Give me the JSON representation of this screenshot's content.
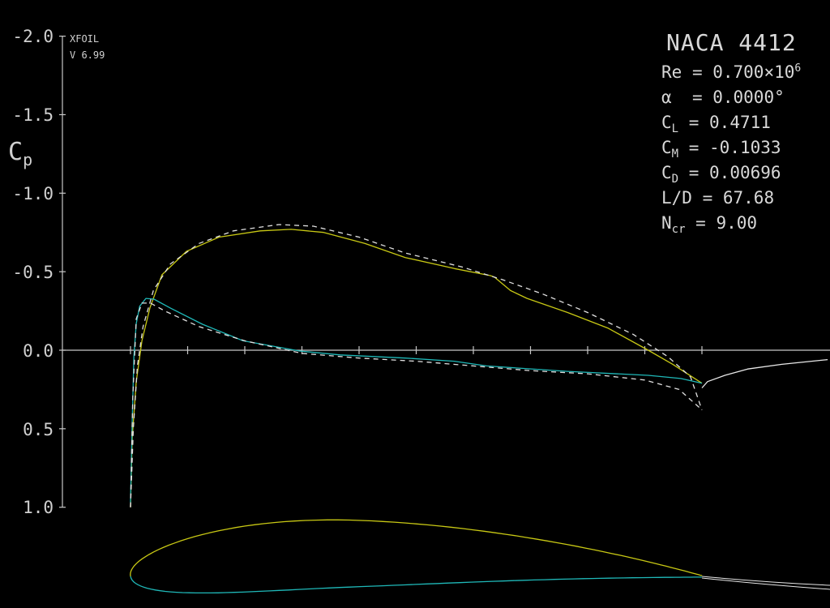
{
  "brand": {
    "name": "XFOIL",
    "version": "V 6.99"
  },
  "info": {
    "airfoil": "NACA 4412",
    "rows": [
      {
        "sym": "Re",
        "sub": "",
        "eq": " = ",
        "val": "0.700×10",
        "sup": "6"
      },
      {
        "sym": "α",
        "sub": "",
        "eq": "  = ",
        "val": "0.0000°",
        "sup": ""
      },
      {
        "sym": "C",
        "sub": "L",
        "eq": " = ",
        "val": "0.4711",
        "sup": ""
      },
      {
        "sym": "C",
        "sub": "M",
        "eq": " = ",
        "val": "-0.1033",
        "sup": ""
      },
      {
        "sym": "C",
        "sub": "D",
        "eq": " = ",
        "val": "0.00696",
        "sup": ""
      },
      {
        "sym": "L/D",
        "sub": "",
        "eq": " = ",
        "val": "67.68",
        "sup": ""
      },
      {
        "sym": "N",
        "sub": "cr",
        "eq": " = ",
        "val": "9.00",
        "sup": ""
      }
    ]
  },
  "chart_data": {
    "type": "line",
    "ylabel": "C",
    "ylabel_sub": "p",
    "ylim": [
      -2.0,
      1.0
    ],
    "y_inverted": true,
    "yticks": [
      "-2.0",
      "-1.5",
      "-1.0",
      "-0.5",
      "0.0",
      "0.5",
      "1.0"
    ],
    "ytick_values": [
      -2.0,
      -1.5,
      -1.0,
      -0.5,
      0.0,
      0.5,
      1.0
    ],
    "xlim": [
      0,
      1.22
    ],
    "xticks": [
      0,
      0.1,
      0.2,
      0.3,
      0.4,
      0.5,
      0.6,
      0.7,
      0.8,
      0.9,
      1.0
    ],
    "colors": {
      "upper": "#c8c814",
      "lower": "#1fb8b8",
      "inviscid": "#e0e0e0",
      "wake": "#e8e8e8",
      "axis": "#c8c8c8"
    },
    "series": [
      {
        "id": "viscous-upper",
        "style": "solid",
        "color": "upper",
        "x": [
          0,
          0.003,
          0.01,
          0.02,
          0.034,
          0.055,
          0.098,
          0.155,
          0.227,
          0.281,
          0.338,
          0.41,
          0.481,
          0.567,
          0.63,
          0.637,
          0.665,
          0.694,
          0.765,
          0.836,
          0.906,
          0.949,
          1.0
        ],
        "y": [
          1.0,
          0.56,
          0.2,
          -0.06,
          -0.27,
          -0.48,
          -0.63,
          -0.72,
          -0.76,
          -0.77,
          -0.75,
          -0.68,
          -0.59,
          -0.52,
          -0.475,
          -0.465,
          -0.38,
          -0.33,
          -0.24,
          -0.14,
          0.0,
          0.09,
          0.21
        ]
      },
      {
        "id": "viscous-lower",
        "style": "solid",
        "color": "lower",
        "x": [
          0,
          0.003,
          0.006,
          0.01,
          0.016,
          0.027,
          0.041,
          0.069,
          0.126,
          0.197,
          0.296,
          0.367,
          0.481,
          0.567,
          0.623,
          0.765,
          0.906,
          0.963,
          1.0
        ],
        "y": [
          0.97,
          0.45,
          0.04,
          -0.17,
          -0.28,
          -0.33,
          -0.325,
          -0.27,
          -0.165,
          -0.06,
          0.005,
          0.03,
          0.05,
          0.07,
          0.1,
          0.135,
          0.16,
          0.18,
          0.21
        ]
      },
      {
        "id": "inviscid-upper",
        "style": "dashed",
        "color": "inviscid",
        "x": [
          0,
          0.005,
          0.012,
          0.022,
          0.04,
          0.07,
          0.12,
          0.18,
          0.26,
          0.32,
          0.4,
          0.48,
          0.58,
          0.65,
          0.72,
          0.8,
          0.88,
          0.94,
          0.98,
          1.0
        ],
        "y": [
          1.0,
          0.5,
          0.1,
          -0.15,
          -0.38,
          -0.55,
          -0.68,
          -0.76,
          -0.8,
          -0.79,
          -0.72,
          -0.62,
          -0.53,
          -0.45,
          -0.36,
          -0.24,
          -0.1,
          0.04,
          0.17,
          0.38
        ]
      },
      {
        "id": "inviscid-lower",
        "style": "dashed",
        "color": "inviscid",
        "x": [
          0,
          0.004,
          0.01,
          0.02,
          0.035,
          0.06,
          0.12,
          0.2,
          0.3,
          0.4,
          0.5,
          0.6,
          0.7,
          0.8,
          0.9,
          0.96,
          1.0
        ],
        "y": [
          1.0,
          0.3,
          -0.2,
          -0.3,
          -0.3,
          -0.25,
          -0.15,
          -0.06,
          0.02,
          0.05,
          0.07,
          0.1,
          0.13,
          0.15,
          0.19,
          0.25,
          0.38
        ]
      },
      {
        "id": "wake",
        "style": "solid",
        "color": "wake",
        "x": [
          1.0,
          1.01,
          1.04,
          1.08,
          1.14,
          1.22
        ],
        "y": [
          0.24,
          0.2,
          0.16,
          0.12,
          0.09,
          0.06
        ]
      }
    ],
    "airfoil": {
      "name": "NACA 4412",
      "max_camber": 0.04,
      "camber_pos": 0.4,
      "thickness": 0.12
    }
  }
}
